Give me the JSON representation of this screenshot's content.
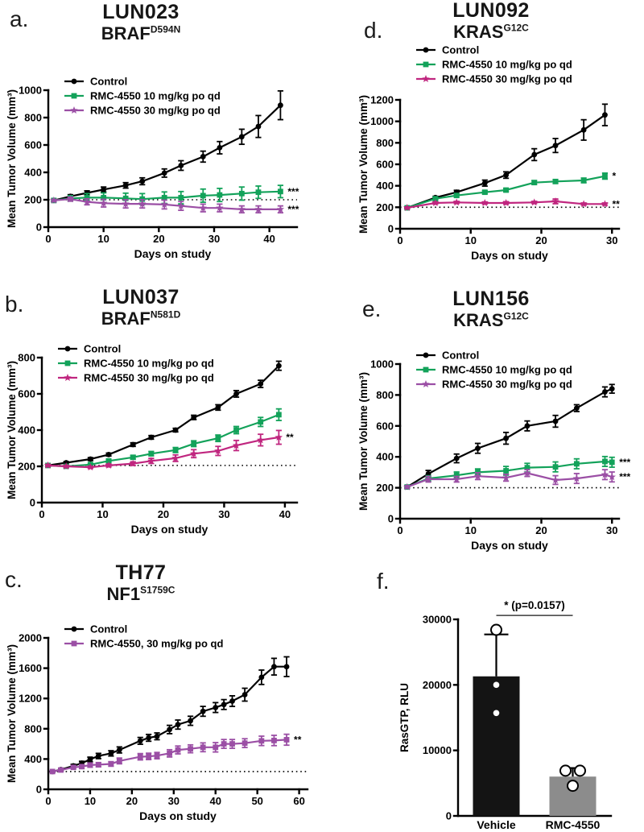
{
  "chart_data": [
    {
      "id": "a",
      "letter": "a.",
      "type": "line",
      "title": "LUN023",
      "gene": "BRAF",
      "gene_sup": "D594N",
      "xlabel": "Days on study",
      "ylabel": "Mean Tumor Volume (mm³)",
      "xlim": [
        0,
        45
      ],
      "xticks": [
        0,
        10,
        20,
        30,
        40
      ],
      "ylim": [
        0,
        1000
      ],
      "yticks": [
        0,
        200,
        400,
        600,
        800,
        1000
      ],
      "baseline": 200,
      "legend_mode": "overlap",
      "grid": false,
      "series": [
        {
          "name": "Control",
          "color": "#000000",
          "marker": "circle",
          "sig": "",
          "x": [
            1,
            4,
            7,
            10,
            14,
            17,
            21,
            24,
            28,
            31,
            35,
            38,
            42
          ],
          "y": [
            195,
            225,
            250,
            275,
            305,
            335,
            395,
            450,
            515,
            580,
            660,
            735,
            890
          ],
          "err": [
            8,
            12,
            15,
            18,
            20,
            25,
            30,
            35,
            40,
            45,
            55,
            80,
            105
          ]
        },
        {
          "name": "RMC-4550 10 mg/kg po qd",
          "color": "#13a25a",
          "marker": "square",
          "sig": "***",
          "x": [
            1,
            4,
            7,
            10,
            14,
            17,
            21,
            24,
            28,
            31,
            35,
            38,
            42
          ],
          "y": [
            195,
            210,
            215,
            215,
            210,
            205,
            215,
            215,
            230,
            235,
            245,
            255,
            260
          ],
          "err": [
            8,
            20,
            30,
            35,
            38,
            40,
            42,
            45,
            48,
            48,
            48,
            45,
            45
          ]
        },
        {
          "name": "RMC-4550 30 mg/kg po qd",
          "color": "#9b4fa5",
          "marker": "star",
          "sig": "***",
          "x": [
            1,
            4,
            7,
            10,
            14,
            17,
            21,
            24,
            28,
            31,
            35,
            38,
            42
          ],
          "y": [
            195,
            205,
            185,
            175,
            170,
            170,
            165,
            155,
            140,
            140,
            130,
            130,
            130
          ],
          "err": [
            8,
            15,
            22,
            28,
            30,
            30,
            32,
            32,
            28,
            28,
            25,
            25,
            25
          ]
        }
      ]
    },
    {
      "id": "b",
      "letter": "b.",
      "type": "line",
      "title": "LUN037",
      "gene": "BRAF",
      "gene_sup": "N581D",
      "xlabel": "Days on study",
      "ylabel": "Mean Tumor Volume (mm³)",
      "xlim": [
        0,
        42
      ],
      "xticks": [
        0,
        10,
        20,
        30,
        40
      ],
      "ylim": [
        0,
        800
      ],
      "yticks": [
        0,
        200,
        400,
        600,
        800
      ],
      "baseline": 205,
      "legend_mode": "overlap",
      "grid": false,
      "series": [
        {
          "name": "Control",
          "color": "#000000",
          "marker": "circle",
          "sig": "",
          "x": [
            1,
            4,
            8,
            11,
            15,
            18,
            22,
            25,
            29,
            32,
            36,
            39
          ],
          "y": [
            205,
            220,
            240,
            265,
            320,
            360,
            400,
            470,
            525,
            600,
            655,
            755
          ],
          "err": [
            6,
            6,
            8,
            8,
            10,
            10,
            10,
            12,
            15,
            18,
            20,
            25
          ]
        },
        {
          "name": "RMC-4550 10 mg/kg po qd",
          "color": "#13a25a",
          "marker": "square",
          "sig": "",
          "x": [
            1,
            4,
            8,
            11,
            15,
            18,
            22,
            25,
            29,
            32,
            36,
            39
          ],
          "y": [
            205,
            200,
            210,
            230,
            250,
            270,
            290,
            325,
            355,
            400,
            445,
            485
          ],
          "err": [
            6,
            6,
            6,
            8,
            10,
            12,
            14,
            16,
            18,
            20,
            25,
            32
          ]
        },
        {
          "name": "RMC-4550 30 mg/kg po qd",
          "color": "#c0267f",
          "marker": "star",
          "sig": "**",
          "x": [
            1,
            4,
            8,
            11,
            15,
            18,
            22,
            25,
            29,
            32,
            36,
            39
          ],
          "y": [
            205,
            200,
            195,
            205,
            215,
            230,
            245,
            270,
            285,
            315,
            345,
            360
          ],
          "err": [
            6,
            6,
            6,
            8,
            10,
            14,
            18,
            22,
            25,
            28,
            32,
            38
          ]
        }
      ]
    },
    {
      "id": "c",
      "letter": "c.",
      "type": "line",
      "title": "TH77",
      "gene": "NF1",
      "gene_sup": "S1759C",
      "xlabel": "Days on study",
      "ylabel": "Mean Tumor Volume (mm³)",
      "xlim": [
        0,
        62
      ],
      "xticks": [
        0,
        10,
        20,
        30,
        40,
        50,
        60
      ],
      "ylim": [
        0,
        2000
      ],
      "yticks": [
        0,
        400,
        800,
        1200,
        1600,
        2000
      ],
      "baseline": 235,
      "legend_mode": "overlap",
      "grid": false,
      "series": [
        {
          "name": "Control",
          "color": "#000000",
          "marker": "circle",
          "sig": "",
          "x": [
            1,
            3,
            6,
            8,
            10,
            12,
            15,
            17,
            22,
            24,
            26,
            29,
            31,
            34,
            37,
            40,
            42,
            44,
            47,
            51,
            54,
            57
          ],
          "y": [
            235,
            260,
            310,
            345,
            395,
            440,
            475,
            520,
            640,
            680,
            700,
            790,
            855,
            905,
            1030,
            1080,
            1120,
            1165,
            1250,
            1480,
            1620,
            1620
          ],
          "err": [
            10,
            15,
            20,
            25,
            30,
            35,
            35,
            40,
            45,
            45,
            45,
            55,
            60,
            60,
            65,
            65,
            65,
            70,
            85,
            95,
            110,
            130
          ]
        },
        {
          "name": "RMC-4550, 30 mg/kg po qd",
          "color": "#9b4fa5",
          "marker": "square",
          "sig": "**",
          "x": [
            1,
            3,
            6,
            8,
            10,
            12,
            15,
            17,
            22,
            24,
            26,
            29,
            31,
            34,
            37,
            40,
            42,
            44,
            47,
            51,
            54,
            57
          ],
          "y": [
            235,
            255,
            290,
            300,
            320,
            325,
            335,
            375,
            430,
            435,
            445,
            475,
            520,
            535,
            555,
            555,
            600,
            600,
            610,
            640,
            645,
            655
          ],
          "err": [
            10,
            15,
            20,
            25,
            28,
            28,
            30,
            38,
            42,
            42,
            42,
            48,
            52,
            52,
            58,
            62,
            58,
            58,
            58,
            62,
            68,
            72
          ]
        }
      ]
    },
    {
      "id": "d",
      "letter": "d.",
      "type": "line",
      "title": "LUN092",
      "gene": "KRAS",
      "gene_sup": "G12C",
      "xlabel": "Days on study",
      "ylabel": "Mean Tumor Volume (mm³)",
      "xlim": [
        0,
        31
      ],
      "xticks": [
        0,
        10,
        20,
        30
      ],
      "ylim": [
        0,
        1200
      ],
      "yticks": [
        0,
        200,
        400,
        600,
        800,
        1000,
        1200
      ],
      "baseline": 200,
      "legend_mode": "above",
      "grid": false,
      "series": [
        {
          "name": "Control",
          "color": "#000000",
          "marker": "circle",
          "sig": "",
          "x": [
            1,
            5,
            8,
            12,
            15,
            19,
            22,
            26,
            29
          ],
          "y": [
            195,
            290,
            340,
            425,
            500,
            690,
            775,
            920,
            1060
          ],
          "err": [
            8,
            12,
            18,
            28,
            30,
            55,
            65,
            95,
            100
          ]
        },
        {
          "name": "RMC-4550 10 mg/kg po qd",
          "color": "#13a25a",
          "marker": "square",
          "sig": "*",
          "x": [
            1,
            5,
            8,
            12,
            15,
            19,
            22,
            26,
            29
          ],
          "y": [
            195,
            280,
            310,
            340,
            360,
            430,
            440,
            450,
            490
          ],
          "err": [
            8,
            12,
            15,
            15,
            15,
            18,
            18,
            22,
            28
          ]
        },
        {
          "name": "RMC-4550 30 mg/kg po qd",
          "color": "#c0267f",
          "marker": "star",
          "sig": "**",
          "x": [
            1,
            5,
            8,
            12,
            15,
            19,
            22,
            26,
            29
          ],
          "y": [
            195,
            240,
            245,
            240,
            240,
            245,
            255,
            230,
            230
          ],
          "err": [
            8,
            10,
            10,
            10,
            12,
            10,
            22,
            10,
            10
          ]
        }
      ]
    },
    {
      "id": "e",
      "letter": "e.",
      "type": "line",
      "title": "LUN156",
      "gene": "KRAS",
      "gene_sup": "G12C",
      "xlabel": "Days on study",
      "ylabel": "Mean Tumor Volume (mm³)",
      "xlim": [
        0,
        31
      ],
      "xticks": [
        0,
        10,
        20,
        30
      ],
      "ylim": [
        0,
        1000
      ],
      "yticks": [
        0,
        200,
        400,
        600,
        800,
        1000
      ],
      "baseline": 200,
      "legend_mode": "overlap",
      "grid": false,
      "series": [
        {
          "name": "Control",
          "color": "#000000",
          "marker": "circle",
          "sig": "",
          "x": [
            1,
            4,
            8,
            11,
            15,
            18,
            22,
            25,
            29,
            30
          ],
          "y": [
            205,
            290,
            390,
            455,
            520,
            600,
            630,
            715,
            820,
            840
          ],
          "err": [
            8,
            22,
            28,
            32,
            38,
            32,
            38,
            22,
            32,
            28
          ]
        },
        {
          "name": "RMC-4550 10 mg/kg po qd",
          "color": "#13a25a",
          "marker": "square",
          "sig": "***",
          "x": [
            1,
            4,
            8,
            11,
            15,
            18,
            22,
            25,
            29,
            30
          ],
          "y": [
            205,
            260,
            280,
            300,
            310,
            330,
            335,
            355,
            370,
            365
          ],
          "err": [
            8,
            18,
            22,
            22,
            28,
            28,
            32,
            32,
            32,
            32
          ]
        },
        {
          "name": "RMC-4550 30 mg/kg po qd",
          "color": "#9b4fa5",
          "marker": "star",
          "sig": "***",
          "x": [
            1,
            4,
            8,
            11,
            15,
            18,
            22,
            25,
            29,
            30
          ],
          "y": [
            205,
            255,
            255,
            275,
            265,
            295,
            250,
            260,
            285,
            270
          ],
          "err": [
            8,
            18,
            18,
            22,
            22,
            22,
            28,
            32,
            32,
            32
          ]
        }
      ]
    },
    {
      "id": "f",
      "letter": "f.",
      "type": "bar",
      "ylabel": "RasGTP, RLU",
      "ylim": [
        0,
        30000
      ],
      "yticks": [
        0,
        10000,
        20000,
        30000
      ],
      "categories": [
        "Vehicle",
        "RMC-4550"
      ],
      "values": [
        21300,
        6000
      ],
      "errors": [
        6400,
        1300
      ],
      "bar_colors": [
        "#141414",
        "#8c8c8c"
      ],
      "points": [
        [
          28400,
          20000,
          15700
        ],
        [
          6900,
          6900,
          4600
        ]
      ],
      "points_open": [
        [
          true,
          false,
          false
        ],
        [
          true,
          true,
          true
        ]
      ],
      "points_dx": [
        [
          0,
          0,
          0
        ],
        [
          -9,
          9,
          0
        ]
      ],
      "sig_text": "* (p=0.0157)",
      "sig_y": 30600,
      "grid": false
    }
  ]
}
